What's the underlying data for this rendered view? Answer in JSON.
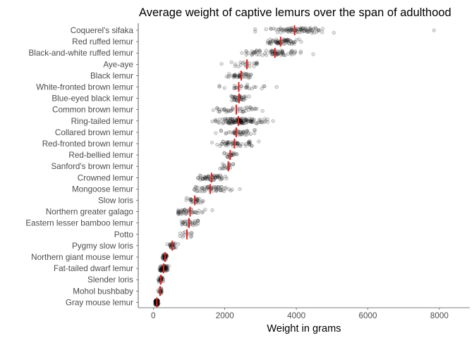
{
  "chart_data": {
    "type": "scatter",
    "title": "Average weight of captive lemurs over the span of adulthood",
    "xlabel": "Weight in grams",
    "ylabel": "",
    "xlim": [
      -420,
      8850
    ],
    "xticks": [
      0,
      2000,
      4000,
      6000,
      8000
    ],
    "grid": false,
    "legend": "none",
    "colors": {
      "points": "#000000",
      "average_marker": "#ee1c1c"
    },
    "categories": [
      "Coquerel's sifaka",
      "Red ruffed lemur",
      "Black-and-white ruffed lemur",
      "Aye-aye",
      "Black lemur",
      "White-fronted brown lemur",
      "Blue-eyed black lemur",
      "Common brown lemur",
      "Ring-tailed lemur",
      "Collared brown lemur",
      "Red-fronted brown lemur",
      "Red-bellied lemur",
      "Sanford's brown lemur",
      "Crowned lemur",
      "Mongoose lemur",
      "Slow loris",
      "Northern greater galago",
      "Eastern lesser bamboo lemur",
      "Potto",
      "Pygmy slow loris",
      "Northern giant mouse lemur",
      "Fat-tailed dwarf lemur",
      "Slender loris",
      "Mohol bushbaby",
      "Gray mouse lemur"
    ],
    "averages": [
      3950,
      3560,
      3400,
      2620,
      2460,
      2390,
      2400,
      2320,
      2380,
      2320,
      2270,
      2150,
      2100,
      1630,
      1590,
      1160,
      1030,
      1000,
      940,
      530,
      330,
      290,
      210,
      190,
      100
    ],
    "ranges": [
      [
        2850,
        5050
      ],
      [
        3050,
        4150
      ],
      [
        2600,
        4550
      ],
      [
        1800,
        2900
      ],
      [
        2000,
        2900
      ],
      [
        1850,
        3400
      ],
      [
        2050,
        2800
      ],
      [
        1550,
        3100
      ],
      [
        1650,
        3200
      ],
      [
        1700,
        3000
      ],
      [
        1600,
        2950
      ],
      [
        1900,
        2350
      ],
      [
        1800,
        2400
      ],
      [
        1100,
        2050
      ],
      [
        1150,
        2350
      ],
      [
        700,
        1500
      ],
      [
        700,
        1650
      ],
      [
        700,
        1250
      ],
      [
        750,
        1200
      ],
      [
        350,
        700
      ],
      [
        260,
        420
      ],
      [
        180,
        480
      ],
      [
        130,
        300
      ],
      [
        120,
        260
      ],
      [
        50,
        170
      ]
    ],
    "counts": [
      80,
      60,
      70,
      22,
      40,
      24,
      35,
      40,
      120,
      40,
      50,
      20,
      18,
      50,
      50,
      25,
      40,
      28,
      12,
      25,
      35,
      60,
      25,
      18,
      90
    ],
    "outliers": [
      {
        "category": "Coquerel's sifaka",
        "x": 7850
      },
      {
        "category": "Black-and-white ruffed lemur",
        "x": 2480
      },
      {
        "category": "White-fronted brown lemur",
        "x": 3450
      },
      {
        "category": "Mongoose lemur",
        "x": 2420
      },
      {
        "category": "Ring-tailed lemur",
        "x": 3350
      }
    ]
  }
}
